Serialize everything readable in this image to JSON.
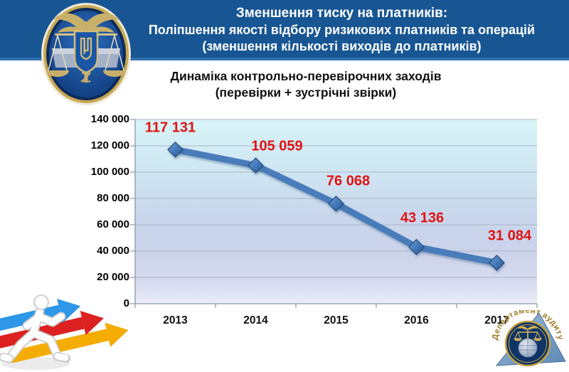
{
  "header": {
    "line1": "Зменшення тиску на платників:",
    "line2": "Поліпшення якості відбору ризикових платників та операцій",
    "line3": "(зменшення кількості виходів до платників)"
  },
  "chart_title": {
    "line1": "Динаміка контрольно-перевірочних заходів",
    "line2": "(перевірки + зустрічні звірки)"
  },
  "chart_data": {
    "type": "line",
    "title": "Динаміка контрольно-перевірочних заходів (перевірки + зустрічні звірки)",
    "categories": [
      "2013",
      "2014",
      "2015",
      "2016",
      "2017"
    ],
    "values": [
      117131,
      105059,
      76068,
      43136,
      31084
    ],
    "data_labels": [
      "117 131",
      "105 059",
      "76 068",
      "43 136",
      "31 084"
    ],
    "xlabel": "",
    "ylabel": "",
    "ylim": [
      0,
      140000
    ],
    "ytick_step": 20000,
    "ytick_labels": [
      "0",
      "20 000",
      "40 000",
      "60 000",
      "80 000",
      "100 000",
      "120 000",
      "140 000"
    ],
    "grid": true,
    "legend": "none",
    "colors": {
      "line": "#4a7cba",
      "marker_dark": "#2f5d97",
      "marker_light": "#6f9fd8",
      "data_label": "#e01212",
      "plot_top": "#d8f3f9",
      "plot_mid": "#c9d7ec",
      "plot_bottom": "#eaecf8",
      "gridline": "#a9b6c2"
    }
  },
  "stamp": {
    "text": "Департамент аудиту"
  },
  "icons": {
    "top_left": "fiscal-service-emblem",
    "bottom_left": "running-man-with-arrows",
    "bottom_right": "audit-department-round-stamp"
  }
}
